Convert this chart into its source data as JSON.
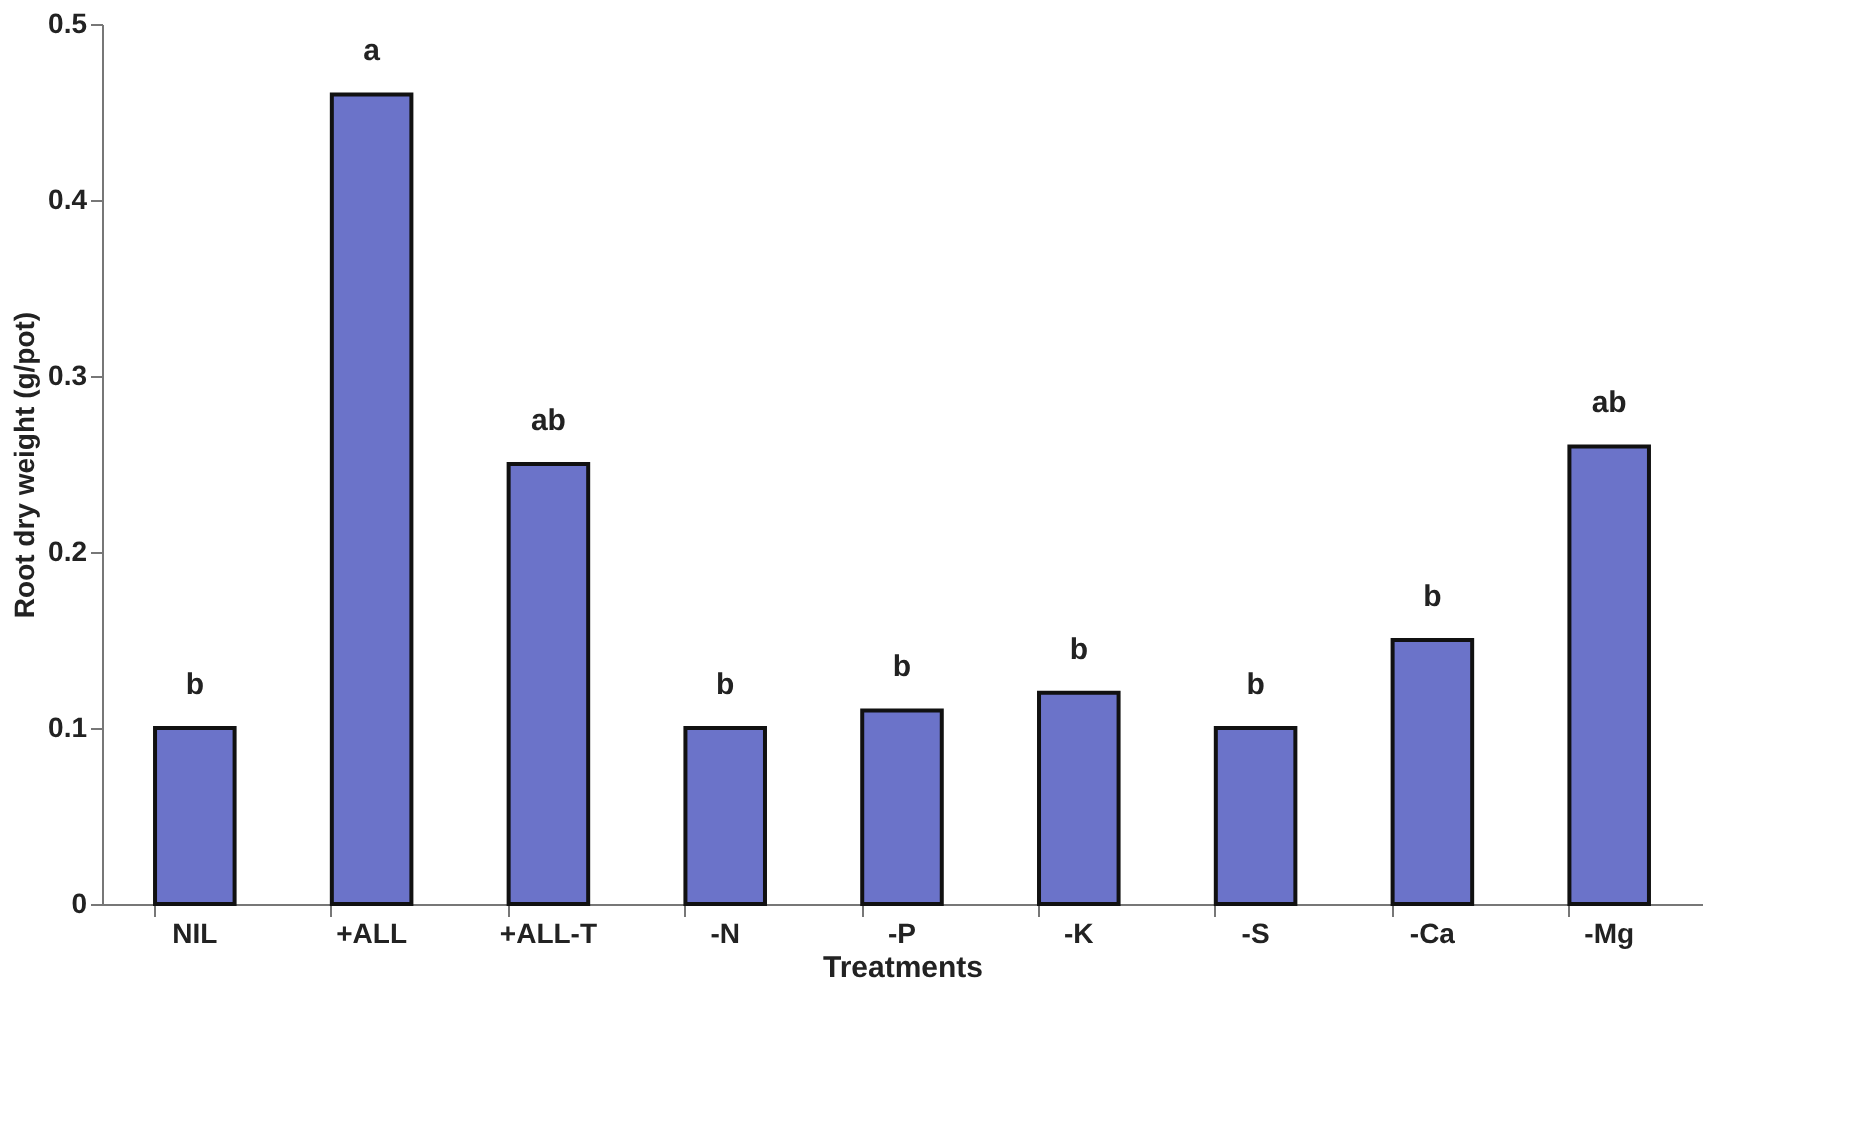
{
  "chart_data": {
    "type": "bar",
    "xlabel": "Treatments",
    "ylabel": "Root dry weight (g/pot)",
    "categories": [
      "NIL",
      "+ALL",
      "+ALL-T",
      "-N",
      "-P",
      "-K",
      "-S",
      "-Ca",
      "-Mg"
    ],
    "values": [
      0.1,
      0.46,
      0.25,
      0.1,
      0.11,
      0.12,
      0.1,
      0.15,
      0.26
    ],
    "color": "#6b73c9",
    "ylim": [
      0,
      0.5
    ],
    "yticks": [
      0,
      0.1,
      0.2,
      0.3,
      0.4,
      0.5
    ],
    "grid": false,
    "annotations": [
      {
        "text": "b",
        "x": "NIL",
        "y": 0.1
      },
      {
        "text": "a",
        "x": "+ALL",
        "y": 0.46
      },
      {
        "text": "ab",
        "x": "+ALL-T",
        "y": 0.25
      },
      {
        "text": "b",
        "x": "-N",
        "y": 0.1
      },
      {
        "text": "b",
        "x": "-P",
        "y": 0.11
      },
      {
        "text": "b",
        "x": "-K",
        "y": 0.12
      },
      {
        "text": "b",
        "x": "-S",
        "y": 0.1
      },
      {
        "text": "b",
        "x": "-Ca",
        "y": 0.15
      },
      {
        "text": "ab",
        "x": "-Mg",
        "y": 0.26
      }
    ]
  }
}
